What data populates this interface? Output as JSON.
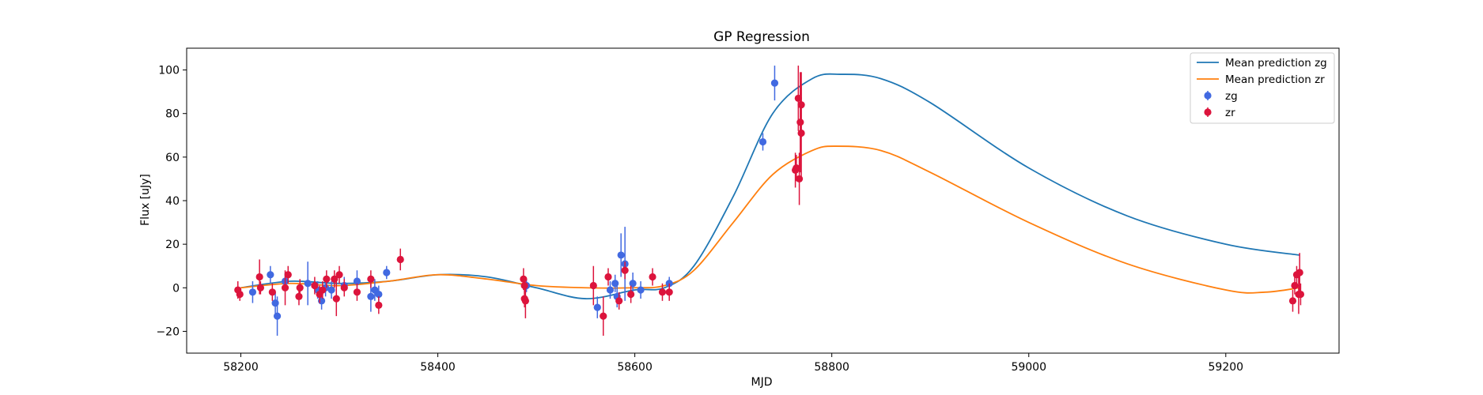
{
  "chart_data": {
    "type": "scatter",
    "title": "GP Regression",
    "xlabel": "MJD",
    "ylabel": "Flux [uJy]",
    "xlim": [
      58145,
      59315
    ],
    "ylim": [
      -30,
      110
    ],
    "xticks": [
      58200,
      58400,
      58600,
      58800,
      59000,
      59200
    ],
    "yticks": [
      -20,
      0,
      20,
      40,
      60,
      80,
      100
    ],
    "grid": false,
    "legend_position": "top-right",
    "lines": [
      {
        "name": "Mean prediction zg",
        "color": "#1f77b4",
        "x": [
          58200,
          58250,
          58300,
          58350,
          58400,
          58450,
          58500,
          58550,
          58600,
          58630,
          58660,
          58700,
          58740,
          58780,
          58810,
          58850,
          58900,
          59000,
          59100,
          59200,
          59275
        ],
        "y": [
          0,
          3,
          2,
          3,
          6,
          5,
          0,
          -5,
          -1,
          0,
          10,
          42,
          80,
          96,
          98,
          96,
          85,
          55,
          33,
          20,
          15
        ]
      },
      {
        "name": "Mean prediction zr",
        "color": "#ff7f0e",
        "x": [
          58200,
          58250,
          58300,
          58350,
          58400,
          58450,
          58500,
          58550,
          58600,
          58630,
          58660,
          58700,
          58740,
          58780,
          58805,
          58850,
          58900,
          59000,
          59100,
          59200,
          59240,
          59275
        ],
        "y": [
          0,
          2,
          1,
          3,
          6,
          4,
          1,
          0,
          0,
          1,
          8,
          30,
          52,
          63,
          65,
          63,
          53,
          30,
          11,
          -1,
          -2,
          0
        ]
      }
    ],
    "series": [
      {
        "name": "zg",
        "color": "#4169e1",
        "points": [
          [
            58212,
            -2,
            5
          ],
          [
            58230,
            6,
            4
          ],
          [
            58235,
            -7,
            5
          ],
          [
            58237,
            -13,
            9
          ],
          [
            58245,
            3,
            4
          ],
          [
            58268,
            2,
            10
          ],
          [
            58278,
            -1,
            4
          ],
          [
            58282,
            -6,
            4
          ],
          [
            58286,
            0,
            4
          ],
          [
            58292,
            -1,
            4
          ],
          [
            58305,
            1,
            4
          ],
          [
            58318,
            3,
            5
          ],
          [
            58332,
            -4,
            7
          ],
          [
            58336,
            -1,
            5
          ],
          [
            58340,
            -3,
            4
          ],
          [
            58348,
            7,
            3
          ],
          [
            58490,
            1,
            3
          ],
          [
            58562,
            -9,
            5
          ],
          [
            58575,
            -1,
            4
          ],
          [
            58580,
            2,
            4
          ],
          [
            58582,
            -4,
            5
          ],
          [
            58586,
            15,
            10
          ],
          [
            58590,
            11,
            17
          ],
          [
            58598,
            2,
            5
          ],
          [
            58606,
            -1,
            4
          ],
          [
            58635,
            2,
            3
          ],
          [
            58730,
            67,
            4
          ],
          [
            58742,
            94,
            8
          ]
        ]
      },
      {
        "name": "zr",
        "color": "#dc143c",
        "points": [
          [
            58197,
            -1,
            4
          ],
          [
            58199,
            -3,
            3
          ],
          [
            58219,
            5,
            8
          ],
          [
            58220,
            0,
            3
          ],
          [
            58232,
            -2,
            4
          ],
          [
            58245,
            0,
            8
          ],
          [
            58248,
            6,
            4
          ],
          [
            58259,
            -4,
            4
          ],
          [
            58260,
            0,
            4
          ],
          [
            58275,
            1,
            4
          ],
          [
            58280,
            -3,
            4
          ],
          [
            58283,
            -1,
            4
          ],
          [
            58287,
            4,
            4
          ],
          [
            58295,
            4,
            4
          ],
          [
            58297,
            -5,
            8
          ],
          [
            58300,
            6,
            4
          ],
          [
            58305,
            0,
            4
          ],
          [
            58318,
            -2,
            4
          ],
          [
            58332,
            4,
            4
          ],
          [
            58340,
            -8,
            4
          ],
          [
            58362,
            13,
            5
          ],
          [
            58487,
            4,
            5
          ],
          [
            58488,
            1,
            4
          ],
          [
            58488,
            -5,
            4
          ],
          [
            58489,
            -6,
            8
          ],
          [
            58558,
            1,
            9
          ],
          [
            58568,
            -13,
            9
          ],
          [
            58573,
            5,
            4
          ],
          [
            58584,
            -6,
            4
          ],
          [
            58590,
            8,
            4
          ],
          [
            58596,
            -3,
            4
          ],
          [
            58618,
            5,
            4
          ],
          [
            58628,
            -2,
            4
          ],
          [
            58635,
            -2,
            4
          ],
          [
            58763,
            54,
            8
          ],
          [
            58764,
            55,
            6
          ],
          [
            58766,
            87,
            15
          ],
          [
            58767,
            50,
            12
          ],
          [
            58768,
            76,
            23
          ],
          [
            58769,
            71,
            22
          ],
          [
            58769,
            84,
            15
          ],
          [
            59268,
            -6,
            5
          ],
          [
            59270,
            1,
            4
          ],
          [
            59272,
            6,
            4
          ],
          [
            59274,
            -3,
            9
          ],
          [
            59275,
            7,
            9
          ],
          [
            59276,
            -3,
            5
          ]
        ]
      }
    ]
  }
}
